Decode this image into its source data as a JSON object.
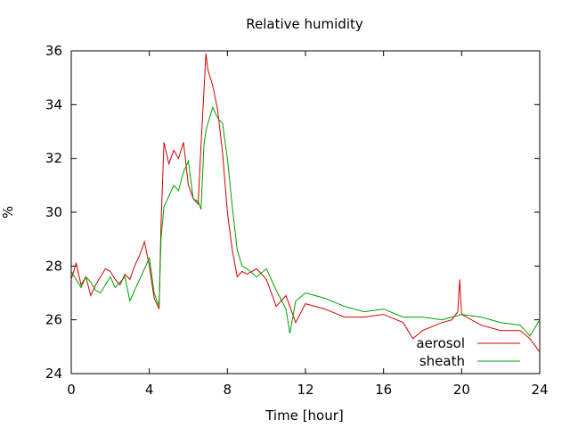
{
  "chart_data": {
    "type": "line",
    "title": "Relative humidity",
    "xlabel": "Time [hour]",
    "ylabel": "%",
    "xlim": [
      0,
      24
    ],
    "ylim": [
      24,
      36
    ],
    "xticks": [
      0,
      4,
      8,
      12,
      16,
      20,
      24
    ],
    "yticks": [
      24,
      26,
      28,
      30,
      32,
      34,
      36
    ],
    "grid": false,
    "legend_position": "bottom-right",
    "series": [
      {
        "name": "aerosol",
        "color": "#d00000",
        "x": [
          0,
          0.25,
          0.5,
          0.75,
          1,
          1.25,
          1.5,
          1.75,
          2,
          2.25,
          2.5,
          2.75,
          3,
          3.25,
          3.5,
          3.75,
          4,
          4.25,
          4.5,
          4.6,
          4.75,
          5,
          5.25,
          5.5,
          5.75,
          6,
          6.25,
          6.5,
          6.65,
          6.8,
          6.9,
          7,
          7.25,
          7.5,
          7.75,
          8,
          8.25,
          8.5,
          8.75,
          9,
          9.5,
          10,
          10.5,
          11,
          11.5,
          12,
          13,
          14,
          15,
          16,
          17,
          17.5,
          18,
          19,
          19.5,
          19.8,
          19.9,
          20,
          21,
          22,
          23,
          23.5,
          24
        ],
        "values": [
          27.5,
          28.1,
          27.3,
          27.6,
          26.9,
          27.3,
          27.6,
          27.9,
          27.8,
          27.5,
          27.3,
          27.7,
          27.5,
          28.0,
          28.4,
          28.9,
          28.0,
          26.8,
          26.4,
          29.5,
          32.6,
          31.8,
          32.3,
          32.0,
          32.6,
          31.0,
          30.5,
          30.3,
          32.5,
          34.5,
          35.9,
          35.3,
          34.7,
          33.8,
          32.2,
          30.0,
          28.6,
          27.6,
          27.8,
          27.7,
          27.9,
          27.5,
          26.5,
          26.9,
          25.9,
          26.6,
          26.4,
          26.1,
          26.1,
          26.2,
          25.9,
          25.3,
          25.6,
          25.9,
          26.0,
          26.3,
          27.5,
          26.2,
          25.8,
          25.6,
          25.6,
          25.3,
          24.8
        ]
      },
      {
        "name": "sheath",
        "color": "#00a000",
        "x": [
          0,
          0.25,
          0.5,
          0.75,
          1,
          1.25,
          1.5,
          1.75,
          2,
          2.25,
          2.5,
          2.75,
          3,
          3.25,
          3.5,
          3.75,
          4,
          4.25,
          4.5,
          4.6,
          4.75,
          5,
          5.25,
          5.5,
          5.75,
          6,
          6.25,
          6.5,
          6.65,
          6.8,
          6.9,
          7,
          7.25,
          7.5,
          7.75,
          8,
          8.25,
          8.5,
          8.75,
          9,
          9.5,
          10,
          10.5,
          11,
          11.2,
          11.5,
          12,
          13,
          14,
          15,
          16,
          17,
          18,
          19,
          20,
          21,
          22,
          23,
          23.5,
          24
        ],
        "values": [
          27.8,
          27.5,
          27.2,
          27.6,
          27.4,
          27.1,
          27.0,
          27.3,
          27.6,
          27.2,
          27.4,
          27.6,
          26.7,
          27.1,
          27.5,
          27.9,
          28.3,
          27.0,
          26.5,
          29.0,
          30.2,
          30.6,
          31.0,
          30.8,
          31.5,
          31.9,
          30.5,
          30.4,
          30.1,
          32.5,
          33.0,
          33.3,
          33.9,
          33.5,
          33.3,
          32.0,
          30.2,
          28.6,
          28.0,
          27.9,
          27.6,
          27.9,
          27.1,
          26.4,
          25.5,
          26.7,
          27.0,
          26.8,
          26.5,
          26.3,
          26.4,
          26.1,
          26.1,
          26.0,
          26.2,
          26.1,
          25.9,
          25.8,
          25.4,
          26.0
        ]
      }
    ]
  }
}
